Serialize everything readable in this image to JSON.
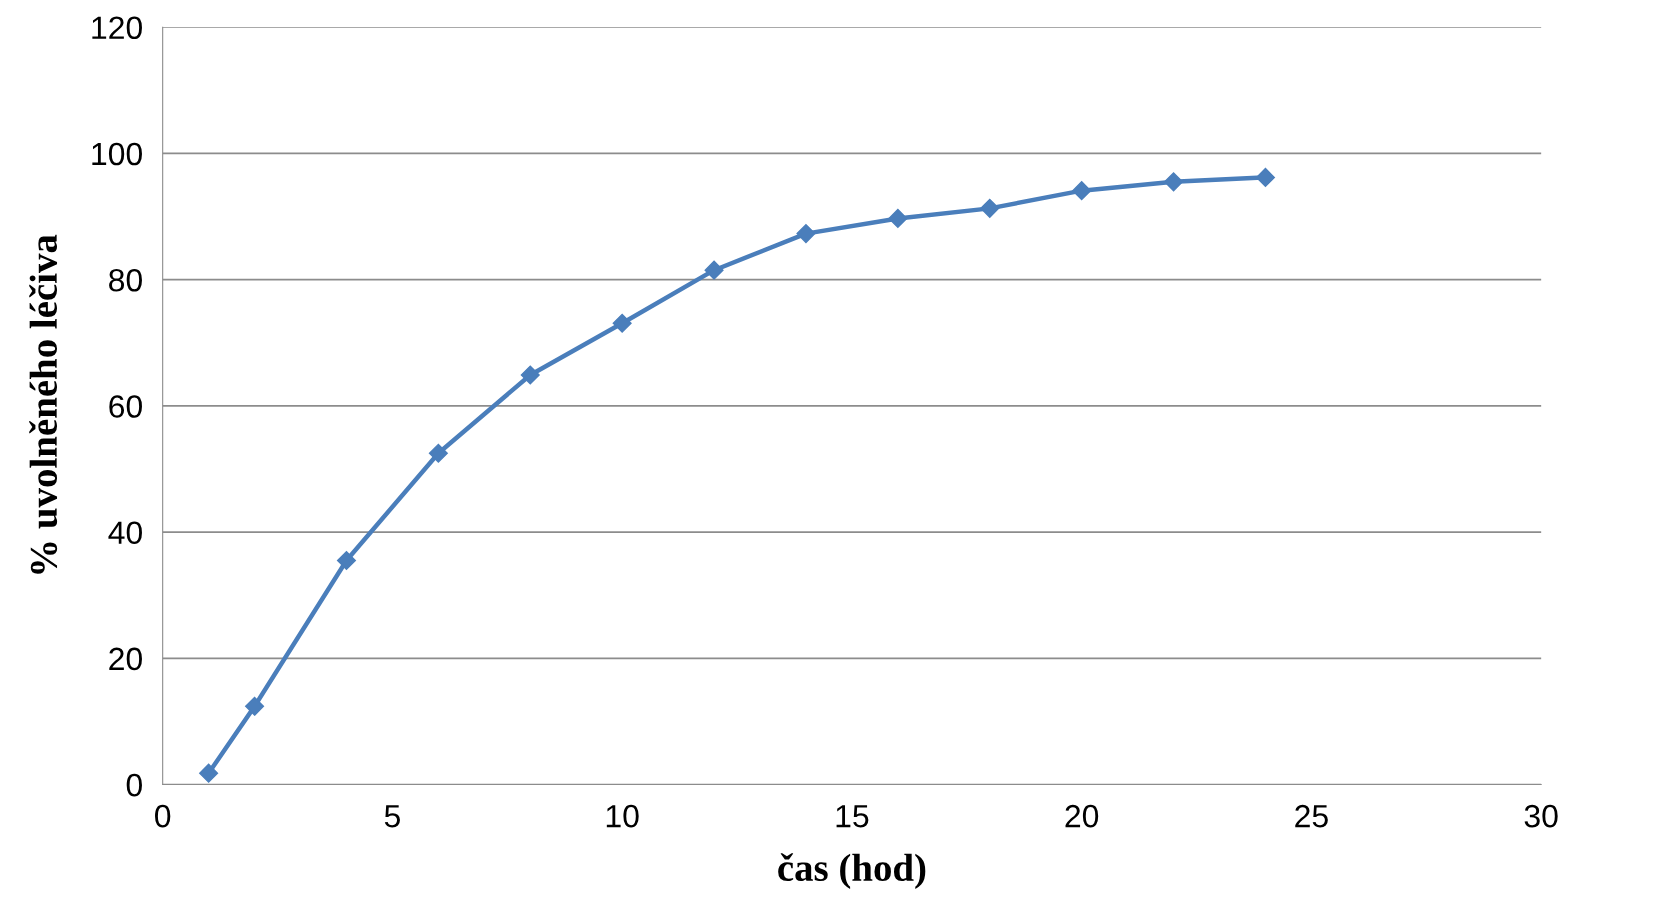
{
  "chart_data": {
    "type": "line",
    "xlabel": "čas (hod)",
    "ylabel": "% uvolněného léčiva",
    "x": [
      1,
      2,
      4,
      6,
      8,
      10,
      12,
      14,
      16,
      18,
      20,
      22,
      24
    ],
    "series": [
      {
        "color": "#4a7ebb",
        "values": [
          1.8,
          12.4,
          35.5,
          52.5,
          64.9,
          73.1,
          81.5,
          87.3,
          89.7,
          91.3,
          94.1,
          95.5,
          96.2
        ]
      }
    ],
    "xlim": [
      0,
      30
    ],
    "xticks": [
      0,
      5,
      10,
      15,
      20,
      25,
      30
    ],
    "ylim": [
      0,
      120
    ],
    "yticks": [
      0,
      20,
      40,
      60,
      80,
      100,
      120
    ],
    "grid": "y",
    "marker": "diamond",
    "line_style": "solid",
    "legend": false
  }
}
